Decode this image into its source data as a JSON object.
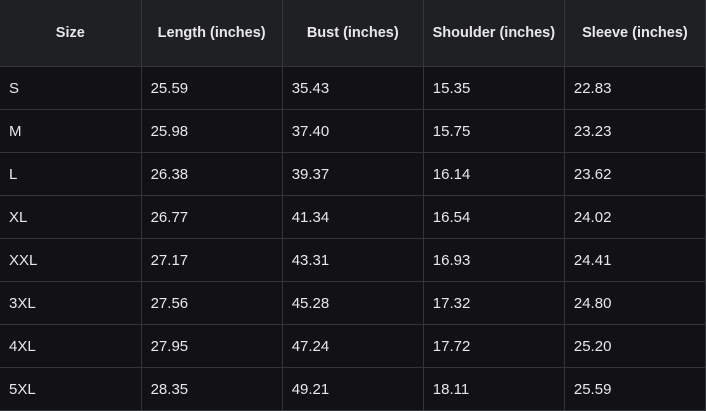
{
  "table": {
    "headers": [
      "Size",
      "Length (inches)",
      "Bust (inches)",
      "Shoulder (inches)",
      "Sleeve (inches)"
    ],
    "rows": [
      [
        "S",
        "25.59",
        "35.43",
        "15.35",
        "22.83"
      ],
      [
        "M",
        "25.98",
        "37.40",
        "15.75",
        "23.23"
      ],
      [
        "L",
        "26.38",
        "39.37",
        "16.14",
        "23.62"
      ],
      [
        "XL",
        "26.77",
        "41.34",
        "16.54",
        "24.02"
      ],
      [
        "XXL",
        "27.17",
        "43.31",
        "16.93",
        "24.41"
      ],
      [
        "3XL",
        "27.56",
        "45.28",
        "17.32",
        "24.80"
      ],
      [
        "4XL",
        "27.95",
        "47.24",
        "17.72",
        "25.20"
      ],
      [
        "5XL",
        "28.35",
        "49.21",
        "18.11",
        "25.59"
      ]
    ]
  },
  "colors": {
    "header_bg": "#1f2023",
    "body_bg": "#121214",
    "border": "#34353a",
    "text": "#e8e8ea"
  }
}
